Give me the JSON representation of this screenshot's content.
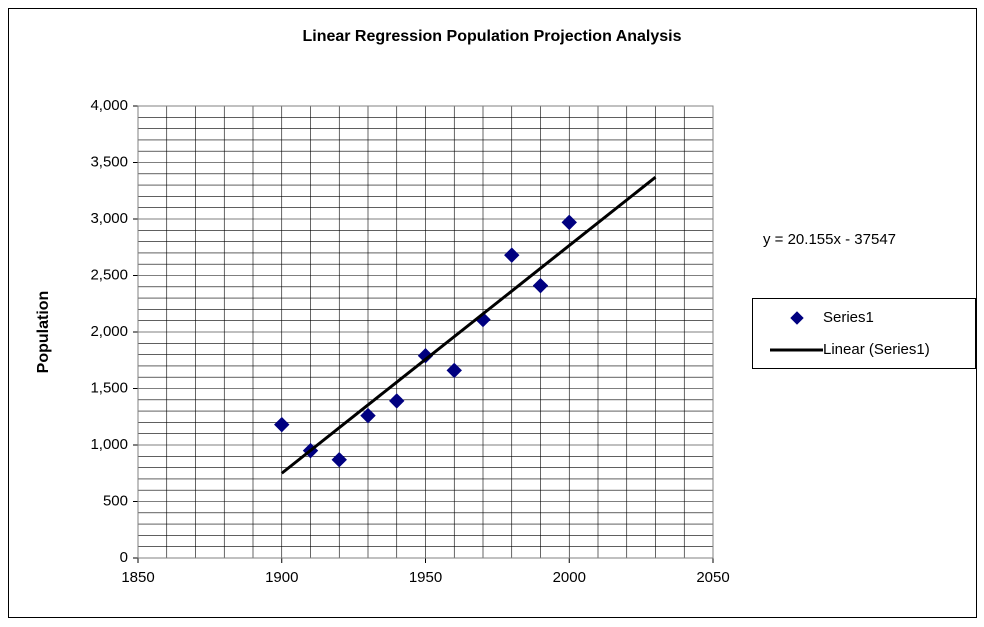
{
  "chart_data": {
    "type": "scatter",
    "title": "Linear Regression Population Projection Analysis",
    "ylabel": "Population",
    "annotation": "y = 20.155x - 37547",
    "xlim": [
      1850,
      2050
    ],
    "xticks": [
      1850,
      1900,
      1950,
      2000,
      2050
    ],
    "ylim": [
      0,
      4000
    ],
    "yticks": [
      0,
      500,
      {
        "value": 1000,
        "label": "1,000"
      },
      {
        "value": 1500,
        "label": "1,500"
      },
      {
        "value": 2000,
        "label": "2,000"
      },
      {
        "value": 2500,
        "label": "2,500"
      },
      {
        "value": 3000,
        "label": "3,000"
      },
      {
        "value": 3500,
        "label": "3,500"
      },
      {
        "value": 4000,
        "label": "4,000"
      }
    ],
    "grid": {
      "x_step": 10,
      "y_step": 100
    },
    "legend": "right",
    "series": [
      {
        "name": "Series1",
        "type": "scatter",
        "color": "#000080",
        "x": [
          1900,
          1910,
          1920,
          1930,
          1940,
          1950,
          1960,
          1970,
          1980,
          1990,
          2000
        ],
        "values": [
          1180,
          950,
          870,
          1260,
          1390,
          1790,
          1660,
          2110,
          2680,
          2410,
          2970
        ]
      },
      {
        "name": "Linear (Series1)",
        "type": "line",
        "color": "#000000",
        "x": [
          1900,
          2030
        ],
        "values": [
          750,
          3370
        ]
      }
    ]
  }
}
